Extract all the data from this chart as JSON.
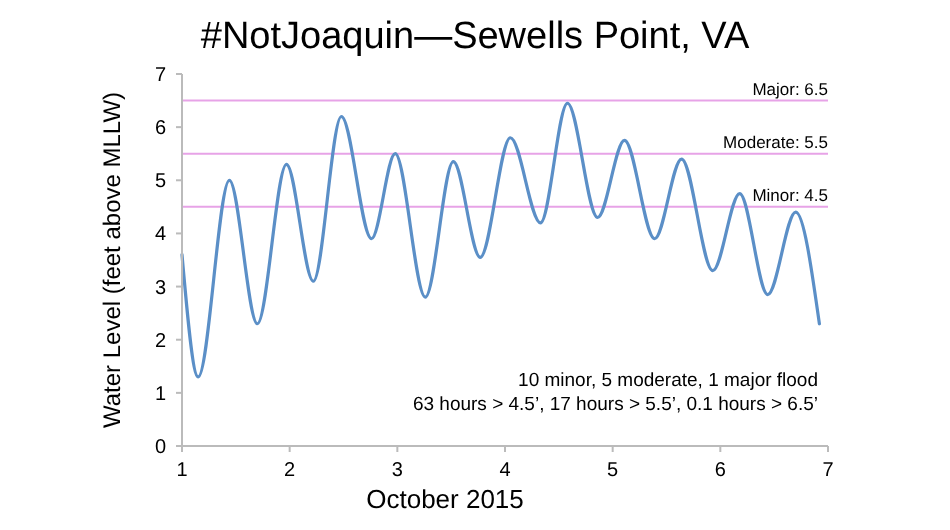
{
  "chart_data": {
    "type": "line",
    "title": "#NotJoaquin—Sewells Point, VA",
    "xlabel": "October 2015",
    "ylabel": "Water Level (feet above MLLW)",
    "x": [
      1.0,
      1.15,
      1.44,
      1.7,
      1.97,
      2.22,
      2.48,
      2.76,
      2.98,
      3.26,
      3.52,
      3.77,
      4.05,
      4.33,
      4.58,
      4.86,
      5.11,
      5.39,
      5.64,
      5.93,
      6.18,
      6.44,
      6.7,
      6.92
    ],
    "series": [
      {
        "color": "#5b8fc7",
        "values": [
          3.6,
          1.3,
          5.0,
          2.3,
          5.3,
          3.1,
          6.2,
          3.9,
          5.5,
          2.8,
          5.35,
          3.55,
          5.8,
          4.2,
          6.45,
          4.3,
          5.75,
          3.9,
          5.4,
          3.3,
          4.75,
          2.85,
          4.4,
          2.3
        ]
      }
    ],
    "xlim": [
      1,
      7
    ],
    "xticks": [
      1,
      2,
      3,
      4,
      5,
      6,
      7
    ],
    "ylim": [
      0,
      7
    ],
    "yticks": [
      0,
      1,
      2,
      3,
      4,
      5,
      6,
      7
    ],
    "grid": false,
    "marker": "none",
    "line_style": "solid",
    "ref_lines": [
      {
        "axis": "y",
        "value": 6.5,
        "label": "Major: 6.5",
        "color": "#e7a3e7"
      },
      {
        "axis": "y",
        "value": 5.5,
        "label": "Moderate: 5.5",
        "color": "#e7a3e7"
      },
      {
        "axis": "y",
        "value": 4.5,
        "label": "Minor: 4.5",
        "color": "#e7a3e7"
      }
    ],
    "annotations": [
      "10 minor,  5 moderate,  1 major flood",
      "63 hours > 4.5’,  17 hours > 5.5’,  0.1 hours > 6.5’"
    ]
  }
}
